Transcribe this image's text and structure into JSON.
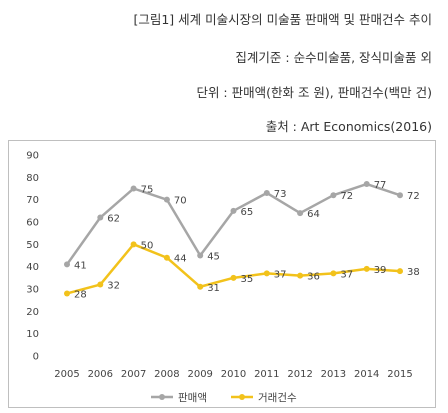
{
  "header": {
    "caption": "[그림1] 세계 미술시장의 미술품 판매액 및 판매건수 추이",
    "criteria": "집계기준 : 순수미술품, 장식미술품 외",
    "unit": "단위 : 판매액(한화 조 원), 판매건수(백만 건)",
    "source": "출처 : Art Economics(2016)"
  },
  "chart_data": {
    "type": "line",
    "categories": [
      "2005",
      "2006",
      "2007",
      "2008",
      "2009",
      "2010",
      "2011",
      "2012",
      "2013",
      "2014",
      "2015"
    ],
    "series": [
      {
        "name": "판매액",
        "values": [
          41,
          62,
          75,
          70,
          45,
          65,
          73,
          64,
          72,
          77,
          72
        ],
        "color": "#a6a6a6"
      },
      {
        "name": "거래건수",
        "values": [
          28,
          32,
          50,
          44,
          31,
          35,
          37,
          36,
          37,
          39,
          38
        ],
        "color": "#f2c21b"
      }
    ],
    "ylim": [
      0,
      90
    ],
    "yticks": [
      0,
      10,
      20,
      30,
      40,
      50,
      60,
      70,
      80,
      90
    ],
    "grid": false,
    "legend": "bottom",
    "title": "",
    "xlabel": "",
    "ylabel": ""
  }
}
